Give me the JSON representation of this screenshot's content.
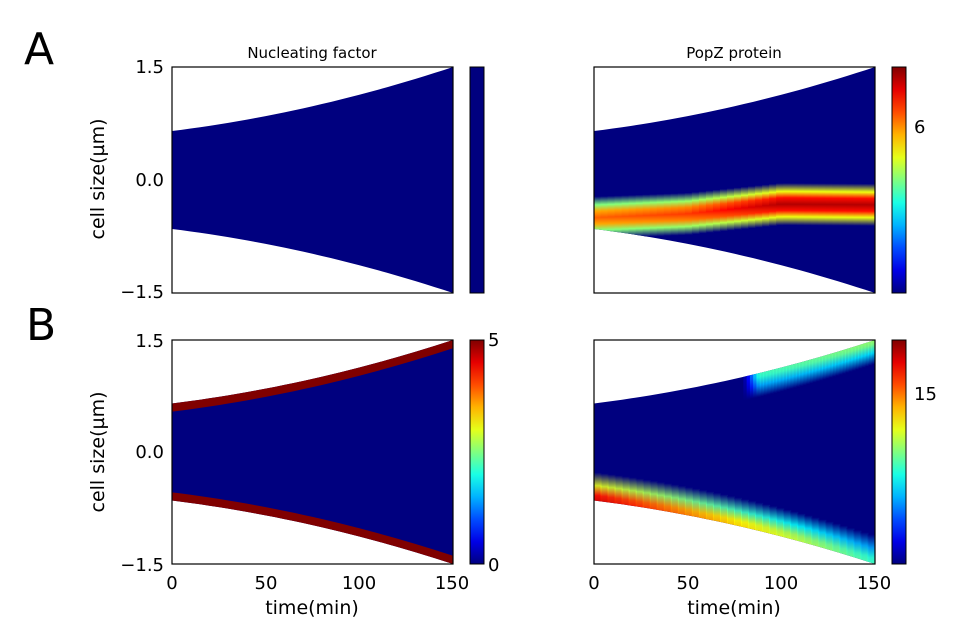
{
  "panel_labels": [
    "A",
    "B"
  ],
  "chart_data": [
    {
      "panel": "A",
      "type": "heatmap",
      "title": "Nucleating factor",
      "xlabel": "",
      "ylabel": "cell size(µm)",
      "xlim": [
        0,
        150
      ],
      "ylim": [
        -1.5,
        1.5
      ],
      "yticks": [
        "1.5",
        "0.0",
        "−1.5"
      ],
      "xticks": [],
      "cell_half_length": [
        {
          "t": 0,
          "v": 0.65
        },
        {
          "t": 150,
          "v": 1.5
        }
      ],
      "colorbar": {
        "range": [
          0,
          1
        ],
        "ticks": []
      },
      "bands": [],
      "colormap": "jet",
      "background": "#00007f"
    },
    {
      "panel": "A",
      "type": "heatmap",
      "title": "PopZ protein",
      "xlabel": "",
      "ylabel": "",
      "xlim": [
        0,
        150
      ],
      "ylim": [
        -1.5,
        1.5
      ],
      "yticks": [],
      "xticks": [],
      "cell_half_length": [
        {
          "t": 0,
          "v": 0.65
        },
        {
          "t": 150,
          "v": 1.5
        }
      ],
      "colorbar": {
        "range": [
          0,
          8
        ],
        "ticks": [
          "6"
        ]
      },
      "bands": [
        {
          "center": [
            -0.5,
            -0.45,
            -0.32,
            -0.33
          ],
          "center_t": [
            0,
            50,
            100,
            150
          ],
          "width": 0.28,
          "peak": [
            0.78,
            0.82,
            0.95,
            0.95
          ]
        }
      ],
      "colormap": "jet",
      "background": "#00007f"
    },
    {
      "panel": "B",
      "type": "heatmap",
      "title": "",
      "xlabel": "time(min)",
      "ylabel": "cell size(µm)",
      "xlim": [
        0,
        150
      ],
      "ylim": [
        -1.5,
        1.5
      ],
      "yticks": [
        "1.5",
        "0.0",
        "−1.5"
      ],
      "xticks": [
        "0",
        "50",
        "100",
        "150"
      ],
      "cell_half_length": [
        {
          "t": 0,
          "v": 0.65
        },
        {
          "t": 150,
          "v": 1.5
        }
      ],
      "colorbar": {
        "range": [
          0,
          5
        ],
        "ticks": [
          "5",
          "0"
        ]
      },
      "bands": [
        {
          "edge": "top",
          "thickness": 0.11,
          "value": 5
        },
        {
          "edge": "bottom",
          "thickness": 0.11,
          "value": 5
        }
      ],
      "colormap": "jet",
      "background": "#00007f"
    },
    {
      "panel": "B",
      "type": "heatmap",
      "title": "",
      "xlabel": "time(min)",
      "ylabel": "",
      "xlim": [
        0,
        150
      ],
      "ylim": [
        -1.5,
        1.5
      ],
      "yticks": [],
      "xticks": [
        "0",
        "50",
        "100",
        "150"
      ],
      "cell_half_length": [
        {
          "t": 0,
          "v": 0.65
        },
        {
          "t": 150,
          "v": 1.5
        }
      ],
      "colorbar": {
        "range": [
          0,
          20
        ],
        "ticks": [
          "15"
        ]
      },
      "bands": [
        {
          "edge": "bottom",
          "t_start": 0,
          "t_end": 150,
          "peak_start": 0.95,
          "peak_end": 0.45
        },
        {
          "edge": "top",
          "t_start": 80,
          "t_end": 150,
          "peak_start": 0.45,
          "peak_end": 0.55
        }
      ],
      "colormap": "jet",
      "background": "#00007f"
    }
  ]
}
